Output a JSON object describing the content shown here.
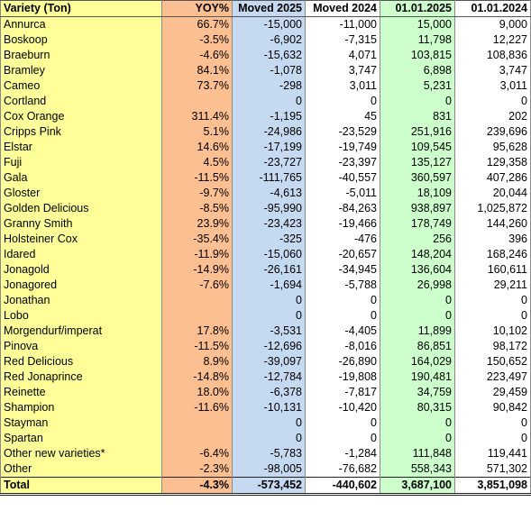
{
  "table": {
    "headers": [
      "Variety (Ton)",
      "YOY%",
      "Moved 2025",
      "Moved 2024",
      "01.01.2025",
      "01.01.2024"
    ],
    "rows": [
      [
        "Annurca",
        "66.7%",
        "-15,000",
        "-11,000",
        "15,000",
        "9,000"
      ],
      [
        "Boskoop",
        "-3.5%",
        "-6,902",
        "-7,315",
        "11,798",
        "12,227"
      ],
      [
        "Braeburn",
        "-4.6%",
        "-15,632",
        "4,071",
        "103,815",
        "108,836"
      ],
      [
        "Bramley",
        "84.1%",
        "-1,078",
        "3,747",
        "6,898",
        "3,747"
      ],
      [
        "Cameo",
        "73.7%",
        "-298",
        "3,011",
        "5,231",
        "3,011"
      ],
      [
        "Cortland",
        "",
        "0",
        "0",
        "0",
        "0"
      ],
      [
        "Cox Orange",
        "311.4%",
        "-1,195",
        "45",
        "831",
        "202"
      ],
      [
        "Cripps Pink",
        "5.1%",
        "-24,986",
        "-23,529",
        "251,916",
        "239,696"
      ],
      [
        "Elstar",
        "14.6%",
        "-17,199",
        "-19,749",
        "109,545",
        "95,628"
      ],
      [
        "Fuji",
        "4.5%",
        "-23,727",
        "-23,397",
        "135,127",
        "129,358"
      ],
      [
        "Gala",
        "-11.5%",
        "-111,765",
        "-40,557",
        "360,597",
        "407,286"
      ],
      [
        "Gloster",
        "-9.7%",
        "-4,613",
        "-5,011",
        "18,109",
        "20,044"
      ],
      [
        "Golden Delicious",
        "-8.5%",
        "-95,990",
        "-84,263",
        "938,897",
        "1,025,872"
      ],
      [
        "Granny Smith",
        "23.9%",
        "-23,423",
        "-19,466",
        "178,749",
        "144,260"
      ],
      [
        "Holsteiner Cox",
        "-35.4%",
        "-325",
        "-476",
        "256",
        "396"
      ],
      [
        "Idared",
        "-11.9%",
        "-15,060",
        "-20,657",
        "148,204",
        "168,246"
      ],
      [
        "Jonagold",
        "-14.9%",
        "-26,161",
        "-34,945",
        "136,604",
        "160,611"
      ],
      [
        "Jonagored",
        "-7.6%",
        "-1,694",
        "-5,788",
        "26,998",
        "29,211"
      ],
      [
        "Jonathan",
        "",
        "0",
        "0",
        "0",
        "0"
      ],
      [
        "Lobo",
        "",
        "0",
        "0",
        "0",
        "0"
      ],
      [
        "Morgendurf/imperat",
        "17.8%",
        "-3,531",
        "-4,405",
        "11,899",
        "10,102"
      ],
      [
        "Pinova",
        "-11.5%",
        "-12,696",
        "-8,016",
        "86,851",
        "98,172"
      ],
      [
        "Red Delicious",
        "8.9%",
        "-39,097",
        "-26,890",
        "164,029",
        "150,652"
      ],
      [
        "Red Jonaprince",
        "-14.8%",
        "-12,784",
        "-19,808",
        "190,481",
        "223,497"
      ],
      [
        "Reinette",
        "18.0%",
        "-6,378",
        "-7,817",
        "34,759",
        "29,459"
      ],
      [
        "Shampion",
        "-11.6%",
        "-10,131",
        "-10,420",
        "80,315",
        "90,842"
      ],
      [
        "Stayman",
        "",
        "0",
        "0",
        "0",
        "0"
      ],
      [
        "Spartan",
        "",
        "0",
        "0",
        "0",
        "0"
      ],
      [
        "Other new varieties*",
        "-6.4%",
        "-5,783",
        "-1,284",
        "111,848",
        "119,441"
      ],
      [
        "Other",
        "-2.3%",
        "-98,005",
        "-76,682",
        "558,343",
        "571,302"
      ]
    ],
    "total": [
      "Total",
      "-4.3%",
      "-573,452",
      "-440,602",
      "3,687,100",
      "3,851,098"
    ]
  },
  "colors": {
    "variety_column": "#ffff99",
    "yoy_column": "#fcbf91",
    "moved_2025_column": "#c5d9f1",
    "jan_2025_column": "#ccffcc"
  }
}
